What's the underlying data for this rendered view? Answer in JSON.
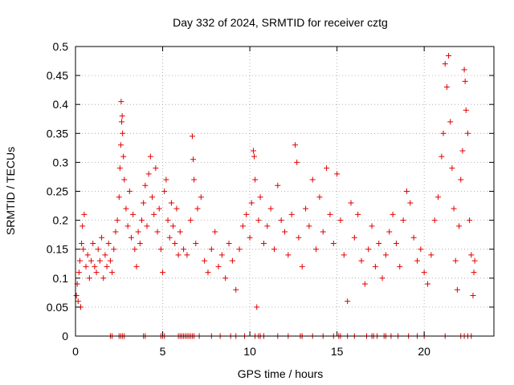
{
  "chart_data": {
    "type": "scatter",
    "title": "Day 332 of 2024, SRMTID for receiver cztg",
    "xlabel": "GPS time / hours",
    "ylabel": "SRMTID / TECUs",
    "xlim": [
      0,
      24
    ],
    "ylim": [
      0,
      0.5
    ],
    "xticks": [
      0,
      5,
      10,
      15,
      20
    ],
    "xtick_labels": [
      "0",
      "5",
      "10",
      "15",
      "20"
    ],
    "yticks": [
      0,
      0.05,
      0.1,
      0.15,
      0.2,
      0.25,
      0.3,
      0.35,
      0.4,
      0.45,
      0.5
    ],
    "ytick_labels": [
      "0",
      "0.05",
      "0.1",
      "0.15",
      "0.2",
      "0.25",
      "0.3",
      "0.35",
      "0.4",
      "0.45",
      "0.5"
    ],
    "grid": true,
    "marker": "+",
    "color": "#e00000",
    "series": [
      {
        "name": "SRMTID",
        "points": [
          [
            0.05,
            0.07
          ],
          [
            0.1,
            0.09
          ],
          [
            0.15,
            0.06
          ],
          [
            0.2,
            0.11
          ],
          [
            0.25,
            0.13
          ],
          [
            0.3,
            0.05
          ],
          [
            0.35,
            0.16
          ],
          [
            0.4,
            0.19
          ],
          [
            0.45,
            0.15
          ],
          [
            0.5,
            0.21
          ],
          [
            0.6,
            0.12
          ],
          [
            0.7,
            0.14
          ],
          [
            0.8,
            0.1
          ],
          [
            0.9,
            0.13
          ],
          [
            1.0,
            0.16
          ],
          [
            1.1,
            0.12
          ],
          [
            1.2,
            0.11
          ],
          [
            1.3,
            0.15
          ],
          [
            1.4,
            0.13
          ],
          [
            1.5,
            0.17
          ],
          [
            1.6,
            0.1
          ],
          [
            1.7,
            0.14
          ],
          [
            1.8,
            0.12
          ],
          [
            1.9,
            0.16
          ],
          [
            2.0,
            0.13
          ],
          [
            2.1,
            0.11
          ],
          [
            2.2,
            0.15
          ],
          [
            2.3,
            0.18
          ],
          [
            2.4,
            0.2
          ],
          [
            2.5,
            0.24
          ],
          [
            2.55,
            0.29
          ],
          [
            2.6,
            0.33
          ],
          [
            2.65,
            0.37
          ],
          [
            2.7,
            0.35
          ],
          [
            2.75,
            0.31
          ],
          [
            2.8,
            0.27
          ],
          [
            2.62,
            0.405
          ],
          [
            2.68,
            0.38
          ],
          [
            2.9,
            0.22
          ],
          [
            3.0,
            0.19
          ],
          [
            3.1,
            0.25
          ],
          [
            3.2,
            0.17
          ],
          [
            3.3,
            0.21
          ],
          [
            3.4,
            0.15
          ],
          [
            3.5,
            0.12
          ],
          [
            3.6,
            0.18
          ],
          [
            3.7,
            0.16
          ],
          [
            3.8,
            0.2
          ],
          [
            3.9,
            0.23
          ],
          [
            4.0,
            0.26
          ],
          [
            4.1,
            0.19
          ],
          [
            4.2,
            0.28
          ],
          [
            4.3,
            0.31
          ],
          [
            4.4,
            0.24
          ],
          [
            4.5,
            0.21
          ],
          [
            4.6,
            0.29
          ],
          [
            4.7,
            0.18
          ],
          [
            4.8,
            0.22
          ],
          [
            4.9,
            0.15
          ],
          [
            5.0,
            0.11
          ],
          [
            5.1,
            0.25
          ],
          [
            5.2,
            0.27
          ],
          [
            5.3,
            0.2
          ],
          [
            5.4,
            0.17
          ],
          [
            5.5,
            0.23
          ],
          [
            5.6,
            0.19
          ],
          [
            5.7,
            0.16
          ],
          [
            5.8,
            0.22
          ],
          [
            5.9,
            0.14
          ],
          [
            6.0,
            0.18
          ],
          [
            6.2,
            0.15
          ],
          [
            6.4,
            0.14
          ],
          [
            6.6,
            0.2
          ],
          [
            6.7,
            0.345
          ],
          [
            6.75,
            0.305
          ],
          [
            6.8,
            0.27
          ],
          [
            6.9,
            0.16
          ],
          [
            7.0,
            0.22
          ],
          [
            7.2,
            0.24
          ],
          [
            7.4,
            0.13
          ],
          [
            7.6,
            0.11
          ],
          [
            7.8,
            0.15
          ],
          [
            8.0,
            0.18
          ],
          [
            8.2,
            0.12
          ],
          [
            8.4,
            0.14
          ],
          [
            8.6,
            0.1
          ],
          [
            8.8,
            0.16
          ],
          [
            9.0,
            0.13
          ],
          [
            9.2,
            0.08
          ],
          [
            9.4,
            0.15
          ],
          [
            9.6,
            0.19
          ],
          [
            9.8,
            0.21
          ],
          [
            10.0,
            0.17
          ],
          [
            10.1,
            0.23
          ],
          [
            10.2,
            0.32
          ],
          [
            10.25,
            0.31
          ],
          [
            10.3,
            0.27
          ],
          [
            10.4,
            0.05
          ],
          [
            10.5,
            0.2
          ],
          [
            10.6,
            0.24
          ],
          [
            10.8,
            0.16
          ],
          [
            11.0,
            0.19
          ],
          [
            11.2,
            0.22
          ],
          [
            11.4,
            0.15
          ],
          [
            11.6,
            0.26
          ],
          [
            11.8,
            0.2
          ],
          [
            12.0,
            0.18
          ],
          [
            12.2,
            0.14
          ],
          [
            12.4,
            0.21
          ],
          [
            12.6,
            0.33
          ],
          [
            12.7,
            0.3
          ],
          [
            12.8,
            0.17
          ],
          [
            13.0,
            0.12
          ],
          [
            13.2,
            0.22
          ],
          [
            13.4,
            0.19
          ],
          [
            13.6,
            0.27
          ],
          [
            13.8,
            0.15
          ],
          [
            14.0,
            0.24
          ],
          [
            14.2,
            0.18
          ],
          [
            14.4,
            0.29
          ],
          [
            14.6,
            0.21
          ],
          [
            14.8,
            0.16
          ],
          [
            15.0,
            0.28
          ],
          [
            15.2,
            0.2
          ],
          [
            15.4,
            0.14
          ],
          [
            15.6,
            0.06
          ],
          [
            15.8,
            0.23
          ],
          [
            16.0,
            0.17
          ],
          [
            16.2,
            0.21
          ],
          [
            16.4,
            0.13
          ],
          [
            16.6,
            0.09
          ],
          [
            16.8,
            0.15
          ],
          [
            17.0,
            0.19
          ],
          [
            17.2,
            0.12
          ],
          [
            17.4,
            0.16
          ],
          [
            17.6,
            0.1
          ],
          [
            17.8,
            0.14
          ],
          [
            18.0,
            0.18
          ],
          [
            18.2,
            0.21
          ],
          [
            18.4,
            0.16
          ],
          [
            18.6,
            0.12
          ],
          [
            18.8,
            0.2
          ],
          [
            19.0,
            0.25
          ],
          [
            19.2,
            0.23
          ],
          [
            19.4,
            0.17
          ],
          [
            19.6,
            0.13
          ],
          [
            19.8,
            0.15
          ],
          [
            20.0,
            0.11
          ],
          [
            20.2,
            0.09
          ],
          [
            20.4,
            0.14
          ],
          [
            20.6,
            0.2
          ],
          [
            20.8,
            0.24
          ],
          [
            21.0,
            0.31
          ],
          [
            21.1,
            0.35
          ],
          [
            21.2,
            0.47
          ],
          [
            21.3,
            0.43
          ],
          [
            21.4,
            0.484
          ],
          [
            21.5,
            0.37
          ],
          [
            21.6,
            0.29
          ],
          [
            21.7,
            0.22
          ],
          [
            21.8,
            0.13
          ],
          [
            21.9,
            0.08
          ],
          [
            22.0,
            0.19
          ],
          [
            22.1,
            0.27
          ],
          [
            22.2,
            0.32
          ],
          [
            22.3,
            0.46
          ],
          [
            22.35,
            0.44
          ],
          [
            22.4,
            0.39
          ],
          [
            22.5,
            0.35
          ],
          [
            22.6,
            0.2
          ],
          [
            22.7,
            0.14
          ],
          [
            22.8,
            0.07
          ],
          [
            22.85,
            0.11
          ],
          [
            22.9,
            0.13
          ]
        ]
      }
    ],
    "zero_marks_x": [
      2.0,
      2.1,
      2.5,
      2.6,
      2.7,
      2.8,
      3.9,
      4.0,
      4.9,
      5.0,
      5.1,
      5.9,
      6.0,
      6.1,
      6.2,
      6.3,
      6.4,
      6.5,
      6.6,
      6.7,
      6.8,
      7.1,
      7.8,
      8.3,
      8.9,
      9.2,
      9.7,
      10.3,
      10.5,
      10.6,
      10.8,
      11.6,
      12.2,
      12.9,
      13.0,
      13.6,
      14.2,
      14.8,
      15.1,
      15.2,
      15.6,
      16.0,
      16.7,
      17.0,
      17.1,
      17.3,
      17.7,
      17.8,
      18.1,
      18.5,
      19.1,
      19.6,
      20.0,
      21.2,
      22.1,
      22.3,
      22.5,
      22.7
    ]
  }
}
